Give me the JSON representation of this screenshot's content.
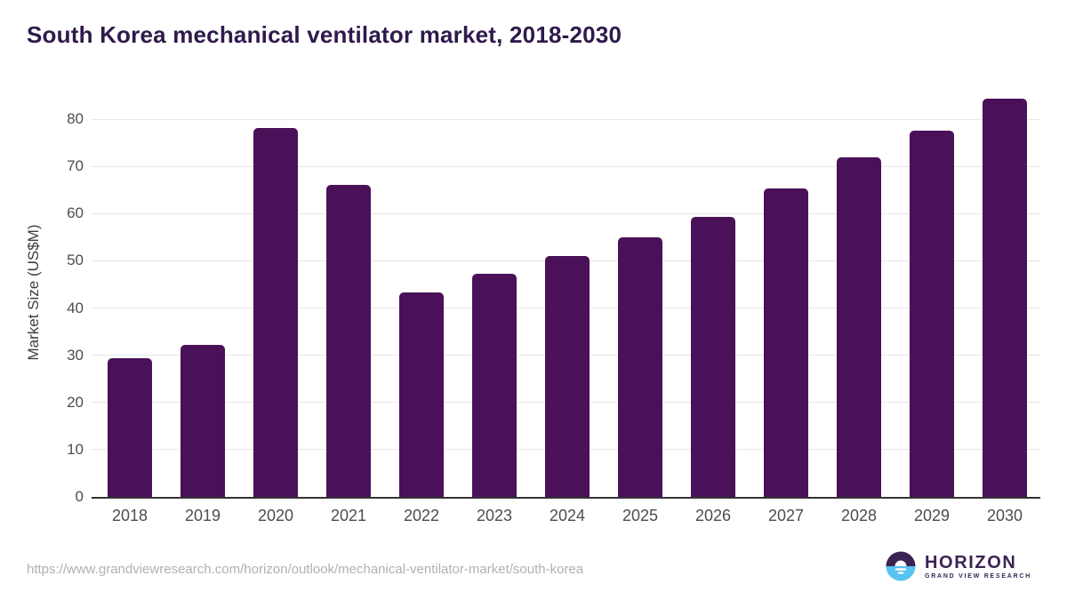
{
  "title": "South Korea mechanical ventilator market, 2018-2030",
  "chart_data": {
    "type": "bar",
    "title": "South Korea mechanical ventilator market, 2018-2030",
    "categories": [
      "2018",
      "2019",
      "2020",
      "2021",
      "2022",
      "2023",
      "2024",
      "2025",
      "2026",
      "2027",
      "2028",
      "2029",
      "2030"
    ],
    "values": [
      29.4,
      32.2,
      78.1,
      66.1,
      43.3,
      47.2,
      51.0,
      55.0,
      59.3,
      65.3,
      71.9,
      77.6,
      84.3
    ],
    "xlabel": "",
    "ylabel": "Market Size (US$M)",
    "ylim": [
      0,
      86.4
    ],
    "yticks": [
      0,
      10,
      20,
      30,
      40,
      50,
      60,
      70,
      80
    ],
    "grid": "horizontal",
    "legend_position": "none",
    "bar_color": "#4a1158"
  },
  "footer": {
    "source_url": "https://www.grandviewresearch.com/horizon/outlook/mechanical-ventilator-market/south-korea",
    "logo": {
      "name": "HORIZON",
      "subtitle": "GRAND VIEW RESEARCH",
      "icon": "horizon-sunset-icon",
      "purple": "#3b2353",
      "blue": "#56c3f0"
    }
  },
  "colors": {
    "title_text": "#2f1a4b",
    "bar": "#4a1158",
    "axis_text": "#4d4d4d",
    "gridline": "#e7e7ea",
    "axis_line": "#333333",
    "url_text": "#b2b0b0"
  }
}
